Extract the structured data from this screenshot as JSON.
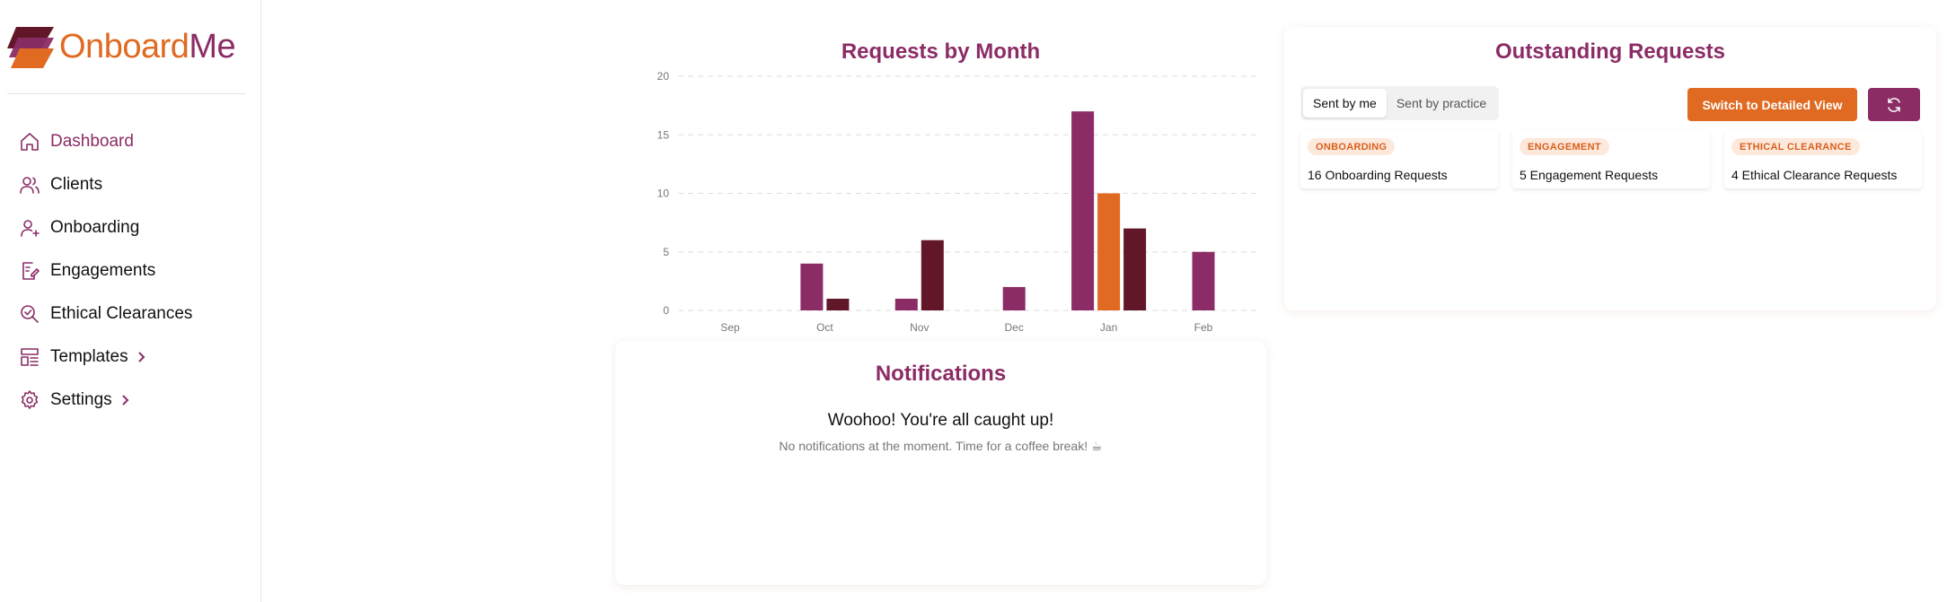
{
  "brand": {
    "name_part1": "Onboard",
    "name_part2": "Me"
  },
  "sidebar": {
    "items": [
      {
        "label": "Dashboard",
        "icon": "home-icon",
        "active": true,
        "chevron": false
      },
      {
        "label": "Clients",
        "icon": "users-icon",
        "active": false,
        "chevron": false
      },
      {
        "label": "Onboarding",
        "icon": "user-plus-icon",
        "active": false,
        "chevron": false
      },
      {
        "label": "Engagements",
        "icon": "file-signature-icon",
        "active": false,
        "chevron": false
      },
      {
        "label": "Ethical Clearances",
        "icon": "search-check-icon",
        "active": false,
        "chevron": false
      },
      {
        "label": "Templates",
        "icon": "layout-template-icon",
        "active": false,
        "chevron": true
      },
      {
        "label": "Settings",
        "icon": "gear-icon",
        "active": false,
        "chevron": true
      }
    ]
  },
  "chart_data": {
    "type": "bar",
    "title": "Requests by Month",
    "categories": [
      "Sep",
      "Oct",
      "Nov",
      "Dec",
      "Jan",
      "Feb"
    ],
    "ylim": [
      0,
      20
    ],
    "yticks": [
      0,
      5,
      10,
      15,
      20
    ],
    "grid": true,
    "colors": {
      "onboarding": "#8b2c66",
      "engagement": "#e06a21",
      "ethical": "#611728"
    },
    "series": [
      {
        "key": "onboarding",
        "values": [
          0,
          4,
          1,
          2,
          17,
          5
        ]
      },
      {
        "key": "engagement",
        "values": [
          0,
          0,
          0,
          0,
          10,
          0
        ]
      },
      {
        "key": "ethical",
        "values": [
          0,
          1,
          6,
          0,
          7,
          0
        ]
      }
    ]
  },
  "notifications": {
    "title": "Notifications",
    "headline": "Woohoo! You're all caught up!",
    "subtext": "No notifications at the moment. Time for a coffee break! ☕"
  },
  "outstanding": {
    "title": "Outstanding Requests",
    "tabs": [
      "Sent by me",
      "Sent by practice"
    ],
    "active_tab": 0,
    "detail_button": "Switch to Detailed View",
    "refresh_icon": "refresh-icon",
    "tiles": [
      {
        "badge": "ONBOARDING",
        "text": "16 Onboarding Requests"
      },
      {
        "badge": "ENGAGEMENT",
        "text": "5 Engagement Requests"
      },
      {
        "badge": "ETHICAL CLEARANCE",
        "text": "4 Ethical Clearance Requests"
      }
    ]
  },
  "theme": {
    "primary": "#8b2c66",
    "accent": "#e06a21",
    "dark": "#611728"
  }
}
